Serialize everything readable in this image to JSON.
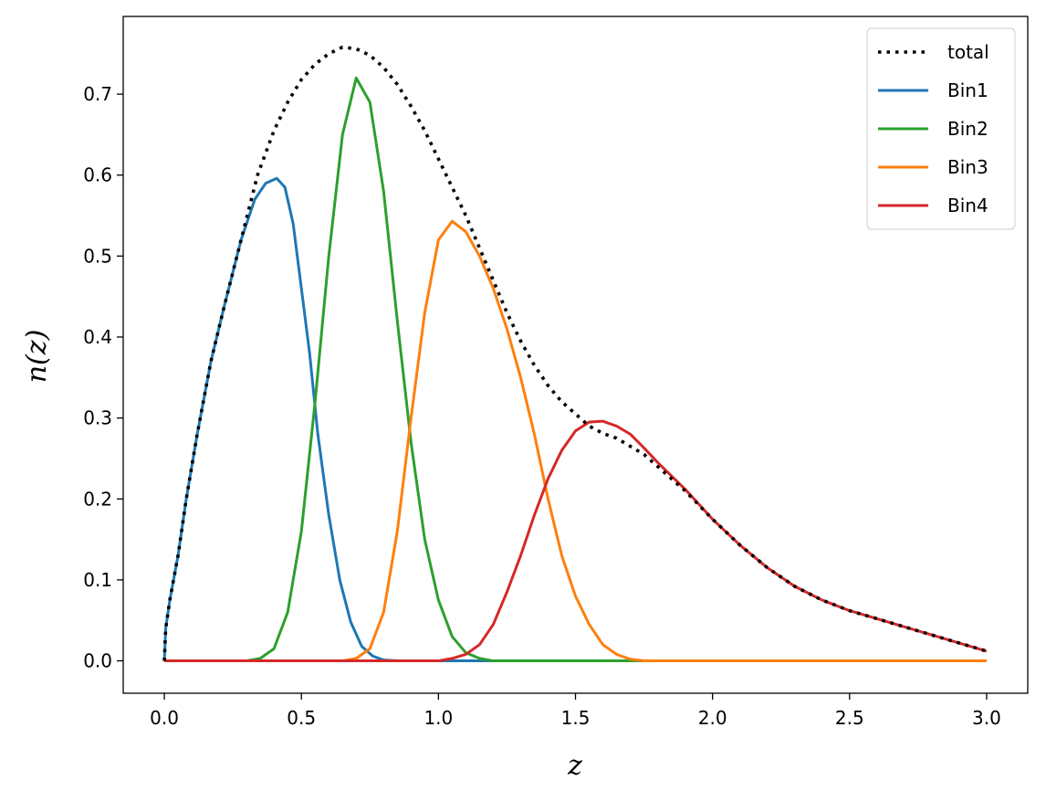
{
  "chart_data": {
    "type": "line",
    "xlabel": "z",
    "ylabel": "n(z)",
    "xlim": [
      -0.15,
      3.15
    ],
    "ylim": [
      -0.04,
      0.796
    ],
    "x_ticks": [
      "0.0",
      "0.5",
      "1.0",
      "1.5",
      "2.0",
      "2.5",
      "3.0"
    ],
    "y_ticks": [
      "0.0",
      "0.1",
      "0.2",
      "0.3",
      "0.4",
      "0.5",
      "0.6",
      "0.7"
    ],
    "grid": false,
    "legend_position": "top-right",
    "series": [
      {
        "name": "total",
        "color": "#000000",
        "style": "dotted",
        "points": [
          [
            0.0,
            0.0
          ],
          [
            0.005,
            0.04
          ],
          [
            0.02,
            0.075
          ],
          [
            0.05,
            0.13
          ],
          [
            0.08,
            0.2
          ],
          [
            0.12,
            0.28
          ],
          [
            0.17,
            0.37
          ],
          [
            0.22,
            0.44
          ],
          [
            0.28,
            0.52
          ],
          [
            0.34,
            0.6
          ],
          [
            0.4,
            0.655
          ],
          [
            0.45,
            0.69
          ],
          [
            0.5,
            0.718
          ],
          [
            0.55,
            0.737
          ],
          [
            0.6,
            0.75
          ],
          [
            0.65,
            0.758
          ],
          [
            0.7,
            0.756
          ],
          [
            0.75,
            0.748
          ],
          [
            0.8,
            0.733
          ],
          [
            0.85,
            0.712
          ],
          [
            0.9,
            0.685
          ],
          [
            0.95,
            0.655
          ],
          [
            1.0,
            0.62
          ],
          [
            1.05,
            0.585
          ],
          [
            1.1,
            0.55
          ],
          [
            1.15,
            0.51
          ],
          [
            1.2,
            0.47
          ],
          [
            1.25,
            0.43
          ],
          [
            1.3,
            0.395
          ],
          [
            1.35,
            0.365
          ],
          [
            1.4,
            0.34
          ],
          [
            1.45,
            0.32
          ],
          [
            1.5,
            0.305
          ],
          [
            1.55,
            0.29
          ],
          [
            1.6,
            0.281
          ],
          [
            1.65,
            0.275
          ],
          [
            1.7,
            0.265
          ],
          [
            1.75,
            0.255
          ],
          [
            1.8,
            0.24
          ],
          [
            1.9,
            0.21
          ],
          [
            2.0,
            0.175
          ],
          [
            2.1,
            0.143
          ],
          [
            2.2,
            0.115
          ],
          [
            2.3,
            0.092
          ],
          [
            2.4,
            0.075
          ],
          [
            2.5,
            0.062
          ],
          [
            2.6,
            0.052
          ],
          [
            2.7,
            0.042
          ],
          [
            2.8,
            0.032
          ],
          [
            2.9,
            0.022
          ],
          [
            3.0,
            0.012
          ]
        ]
      },
      {
        "name": "Bin1",
        "color": "#1f77b4",
        "style": "solid",
        "points": [
          [
            0.0,
            0.0
          ],
          [
            0.005,
            0.04
          ],
          [
            0.02,
            0.075
          ],
          [
            0.05,
            0.13
          ],
          [
            0.08,
            0.2
          ],
          [
            0.12,
            0.28
          ],
          [
            0.17,
            0.37
          ],
          [
            0.22,
            0.44
          ],
          [
            0.28,
            0.52
          ],
          [
            0.33,
            0.57
          ],
          [
            0.37,
            0.59
          ],
          [
            0.41,
            0.596
          ],
          [
            0.44,
            0.585
          ],
          [
            0.47,
            0.54
          ],
          [
            0.5,
            0.46
          ],
          [
            0.53,
            0.38
          ],
          [
            0.56,
            0.28
          ],
          [
            0.6,
            0.18
          ],
          [
            0.64,
            0.1
          ],
          [
            0.68,
            0.048
          ],
          [
            0.72,
            0.018
          ],
          [
            0.76,
            0.006
          ],
          [
            0.8,
            0.001
          ],
          [
            0.85,
            0.0
          ],
          [
            3.0,
            0.0
          ]
        ]
      },
      {
        "name": "Bin2",
        "color": "#2ca02c",
        "style": "solid",
        "points": [
          [
            0.0,
            0.0
          ],
          [
            0.3,
            0.0
          ],
          [
            0.35,
            0.003
          ],
          [
            0.4,
            0.015
          ],
          [
            0.45,
            0.06
          ],
          [
            0.5,
            0.16
          ],
          [
            0.55,
            0.32
          ],
          [
            0.6,
            0.5
          ],
          [
            0.65,
            0.65
          ],
          [
            0.7,
            0.72
          ],
          [
            0.75,
            0.69
          ],
          [
            0.8,
            0.58
          ],
          [
            0.85,
            0.42
          ],
          [
            0.9,
            0.27
          ],
          [
            0.95,
            0.15
          ],
          [
            1.0,
            0.075
          ],
          [
            1.05,
            0.03
          ],
          [
            1.1,
            0.01
          ],
          [
            1.15,
            0.003
          ],
          [
            1.2,
            0.0
          ],
          [
            3.0,
            0.0
          ]
        ]
      },
      {
        "name": "Bin3",
        "color": "#ff7f0e",
        "style": "solid",
        "points": [
          [
            0.0,
            0.0
          ],
          [
            0.65,
            0.0
          ],
          [
            0.7,
            0.003
          ],
          [
            0.75,
            0.015
          ],
          [
            0.8,
            0.06
          ],
          [
            0.85,
            0.16
          ],
          [
            0.9,
            0.3
          ],
          [
            0.95,
            0.43
          ],
          [
            1.0,
            0.52
          ],
          [
            1.05,
            0.543
          ],
          [
            1.1,
            0.53
          ],
          [
            1.15,
            0.5
          ],
          [
            1.2,
            0.46
          ],
          [
            1.25,
            0.41
          ],
          [
            1.3,
            0.35
          ],
          [
            1.35,
            0.28
          ],
          [
            1.4,
            0.2
          ],
          [
            1.45,
            0.13
          ],
          [
            1.5,
            0.08
          ],
          [
            1.55,
            0.045
          ],
          [
            1.6,
            0.02
          ],
          [
            1.65,
            0.008
          ],
          [
            1.7,
            0.002
          ],
          [
            1.75,
            0.0
          ],
          [
            3.0,
            0.0
          ]
        ]
      },
      {
        "name": "Bin4",
        "color": "#d62728",
        "style": "solid",
        "points": [
          [
            0.0,
            0.0
          ],
          [
            1.0,
            0.0
          ],
          [
            1.05,
            0.003
          ],
          [
            1.1,
            0.008
          ],
          [
            1.15,
            0.02
          ],
          [
            1.2,
            0.045
          ],
          [
            1.25,
            0.085
          ],
          [
            1.3,
            0.13
          ],
          [
            1.35,
            0.18
          ],
          [
            1.4,
            0.225
          ],
          [
            1.45,
            0.26
          ],
          [
            1.5,
            0.284
          ],
          [
            1.55,
            0.295
          ],
          [
            1.6,
            0.296
          ],
          [
            1.65,
            0.29
          ],
          [
            1.7,
            0.28
          ],
          [
            1.75,
            0.263
          ],
          [
            1.8,
            0.245
          ],
          [
            1.9,
            0.212
          ],
          [
            2.0,
            0.175
          ],
          [
            2.1,
            0.143
          ],
          [
            2.2,
            0.115
          ],
          [
            2.3,
            0.092
          ],
          [
            2.4,
            0.075
          ],
          [
            2.5,
            0.062
          ],
          [
            2.6,
            0.052
          ],
          [
            2.7,
            0.042
          ],
          [
            2.8,
            0.032
          ],
          [
            2.9,
            0.022
          ],
          [
            3.0,
            0.012
          ]
        ]
      }
    ]
  }
}
